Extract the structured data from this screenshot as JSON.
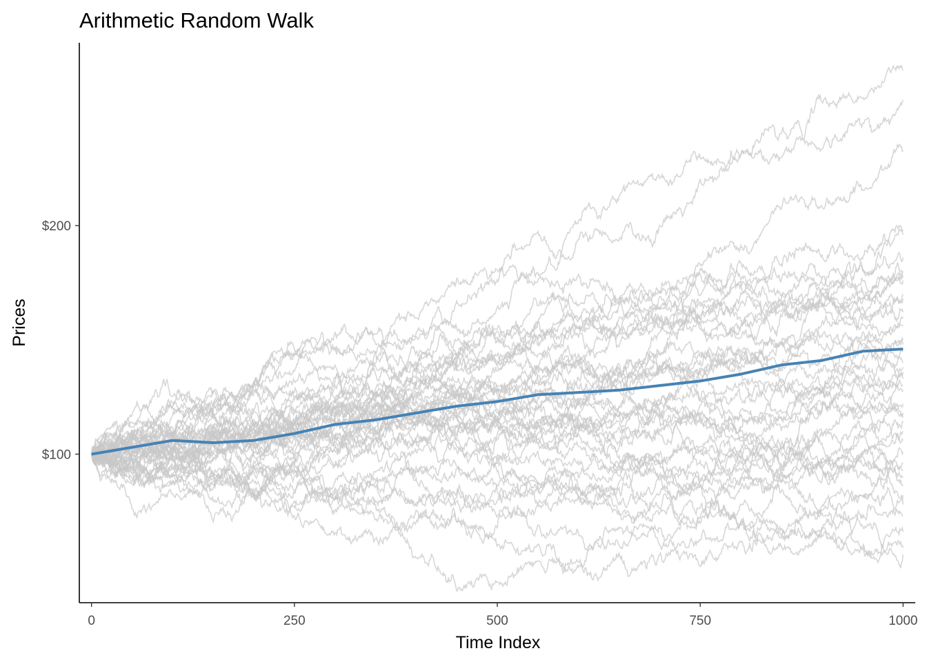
{
  "chart_data": {
    "type": "line",
    "title": "Arithmetic Random Walk",
    "xlabel": "Time Index",
    "ylabel": "Prices",
    "xlim": [
      -15,
      1015
    ],
    "ylim": [
      35,
      280
    ],
    "xticks": [
      0,
      250,
      500,
      750,
      1000
    ],
    "xtick_labels": [
      "0",
      "250",
      "500",
      "750",
      "1000"
    ],
    "yticks": [
      100,
      200
    ],
    "ytick_labels": [
      "$100",
      "$200"
    ],
    "grid": false,
    "legend": "none",
    "n_steps": 1000,
    "simulation_colors": "#c8c8c8",
    "mean_color": "#4682b4",
    "series": [
      {
        "values": [
          [
            0,
            100
          ],
          [
            100,
            106
          ],
          [
            150,
            105
          ],
          [
            200,
            106
          ],
          [
            250,
            109
          ],
          [
            300,
            113
          ],
          [
            350,
            115
          ],
          [
            400,
            118
          ],
          [
            450,
            121
          ],
          [
            500,
            123
          ],
          [
            550,
            126
          ],
          [
            600,
            127
          ],
          [
            650,
            128
          ],
          [
            700,
            130
          ],
          [
            750,
            132
          ],
          [
            800,
            135
          ],
          [
            850,
            139
          ],
          [
            900,
            141
          ],
          [
            950,
            145
          ],
          [
            1000,
            146
          ]
        ]
      }
    ],
    "simulation_end_values": [
      268,
      255,
      233,
      198,
      196,
      186,
      180,
      178,
      177,
      176,
      170,
      168,
      162,
      160,
      156,
      150,
      148,
      145,
      140,
      138,
      136,
      133,
      130,
      128,
      122,
      118,
      116,
      114,
      110,
      106,
      101,
      96,
      93,
      90,
      86,
      82,
      78,
      73,
      66,
      59,
      56
    ]
  }
}
